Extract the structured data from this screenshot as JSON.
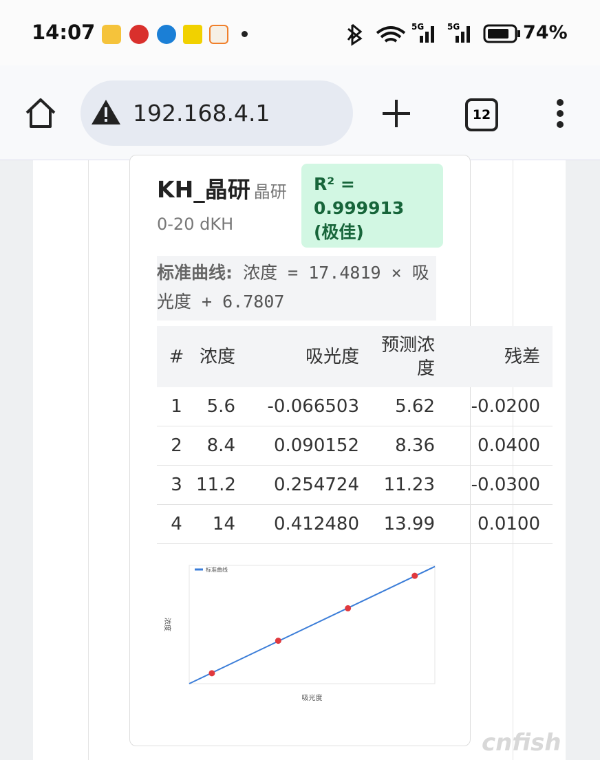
{
  "status_bar": {
    "time": "14:07",
    "signal_1": "5G",
    "signal_2": "5G",
    "battery": "74%"
  },
  "browser": {
    "url": "192.168.4.1",
    "tab_count": "12"
  },
  "card": {
    "title": "KH_晶研",
    "subtitle": "晶研 0-20 dKH",
    "r2_badge": "R² = 0.999913 (极佳)",
    "formula_label": "标准曲线:",
    "formula": "浓度 = 17.4819 × 吸光度 + 6.7807"
  },
  "table": {
    "headers": [
      "#",
      "浓度",
      "吸光度",
      "预测浓度",
      "残差"
    ],
    "rows": [
      [
        "1",
        "5.6",
        "-0.066503",
        "5.62",
        "-0.0200"
      ],
      [
        "2",
        "8.4",
        "0.090152",
        "8.36",
        "0.0400"
      ],
      [
        "3",
        "11.2",
        "0.254724",
        "11.23",
        "-0.0300"
      ],
      [
        "4",
        "14",
        "0.412480",
        "13.99",
        "0.0100"
      ]
    ]
  },
  "chart_data": {
    "type": "line",
    "x_label": "吸光度",
    "y_label": "浓度",
    "legend": "top-left",
    "xlim": [
      -0.12,
      0.46
    ],
    "ylim": [
      4.7,
      14.9
    ],
    "series": [
      {
        "name": "标准曲线",
        "type": "line",
        "color": "#3b7dd8",
        "x": [
          -0.12,
          0.46
        ],
        "values": [
          4.7,
          14.8
        ]
      },
      {
        "type": "scatter",
        "color": "#e0393e",
        "x": [
          -0.066503,
          0.090152,
          0.254724,
          0.41248
        ],
        "values": [
          5.6,
          8.4,
          11.2,
          14
        ]
      }
    ]
  },
  "watermark": "cnfish"
}
